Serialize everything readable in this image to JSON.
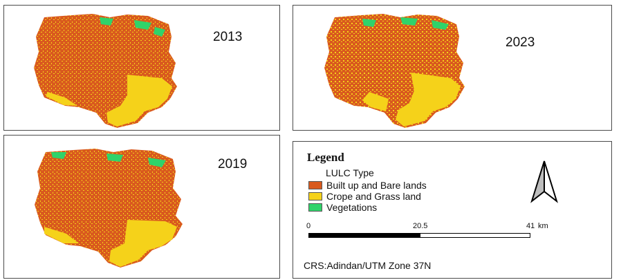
{
  "panels": [
    {
      "year": "2013"
    },
    {
      "year": "2023"
    },
    {
      "year": "2019"
    }
  ],
  "legend": {
    "title": "Legend",
    "subtitle": "LULC Type",
    "items": [
      {
        "label": "Built up and Bare lands",
        "color": "#d95a1e"
      },
      {
        "label": "Crope and Grass land",
        "color": "#f5d21a"
      },
      {
        "label": "Vegetations",
        "color": "#2fd36a"
      }
    ]
  },
  "scale": {
    "labels": [
      "0",
      "20.5",
      "41"
    ],
    "units": "km"
  },
  "crs": "CRS:Adindan/UTM Zone  37N",
  "map_colors": {
    "built_up": "#d95a1e",
    "crop_grass": "#f5d21a",
    "vegetation": "#2fd36a"
  }
}
